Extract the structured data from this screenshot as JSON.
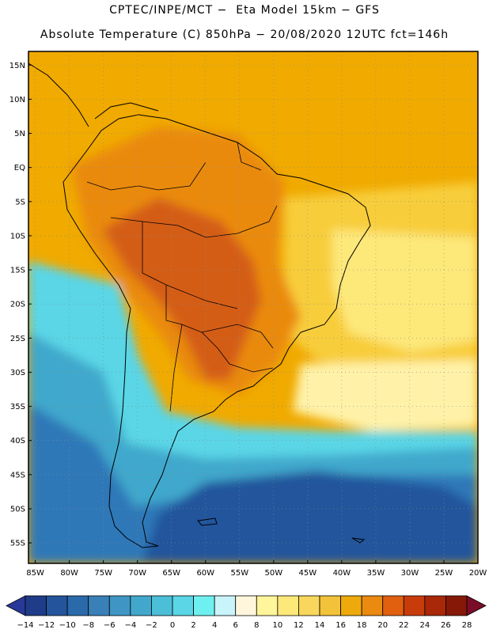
{
  "header": {
    "line1": "CPTEC/INPE/MCT −  Eta Model 15km − GFS",
    "line2": "Absolute Temperature (C) 850hPa − 20/08/2020 12UTC fct=146h"
  },
  "axes": {
    "latitude_labels": [
      "15N",
      "10N",
      "5N",
      "EQ",
      "5S",
      "10S",
      "15S",
      "20S",
      "25S",
      "30S",
      "35S",
      "40S",
      "45S",
      "50S",
      "55S"
    ],
    "latitude_values": [
      15,
      10,
      5,
      0,
      -5,
      -10,
      -15,
      -20,
      -25,
      -30,
      -35,
      -40,
      -45,
      -50,
      -55
    ],
    "longitude_labels": [
      "85W",
      "80W",
      "75W",
      "70W",
      "65W",
      "60W",
      "55W",
      "50W",
      "45W",
      "40W",
      "35W",
      "30W",
      "25W",
      "20W"
    ],
    "longitude_values": [
      -85,
      -80,
      -75,
      -70,
      -65,
      -60,
      -55,
      -50,
      -45,
      -40,
      -35,
      -30,
      -25,
      -20
    ],
    "lat_range": [
      -58,
      17
    ],
    "lon_range": [
      -86,
      -20
    ],
    "grid": true
  },
  "colorbar": {
    "labels": [
      "−14",
      "−12",
      "−10",
      "−8",
      "−6",
      "−4",
      "−2",
      "0",
      "2",
      "4",
      "6",
      "8",
      "10",
      "12",
      "14",
      "16",
      "18",
      "20",
      "22",
      "24",
      "26",
      "28"
    ],
    "colors": [
      "#1f3c88",
      "#24559c",
      "#2a6aaa",
      "#3a80b8",
      "#3f96c4",
      "#41a8cc",
      "#4cbfd8",
      "#5ad6e6",
      "#6ff0f0",
      "#c8f4fa",
      "#fff6dc",
      "#fff59a",
      "#fde87a",
      "#f8d75c",
      "#f2c23a",
      "#eeaa0c",
      "#ea8a10",
      "#e06010",
      "#c83c0c",
      "#a82808",
      "#861808"
    ],
    "under_color": "#283898",
    "over_color": "#7a0d28"
  },
  "field_colors": {
    "warm_ocean": "#f0aa00",
    "subtropical": "#f8cd3a",
    "mild": "#fde87a",
    "pale": "#fff2a8",
    "hot_land": "#ea8a10",
    "very_hot": "#d45d12",
    "cool": "#5ad6e6",
    "cold": "#41a8cc",
    "colder": "#2f78b8",
    "coldest": "#24559c"
  }
}
